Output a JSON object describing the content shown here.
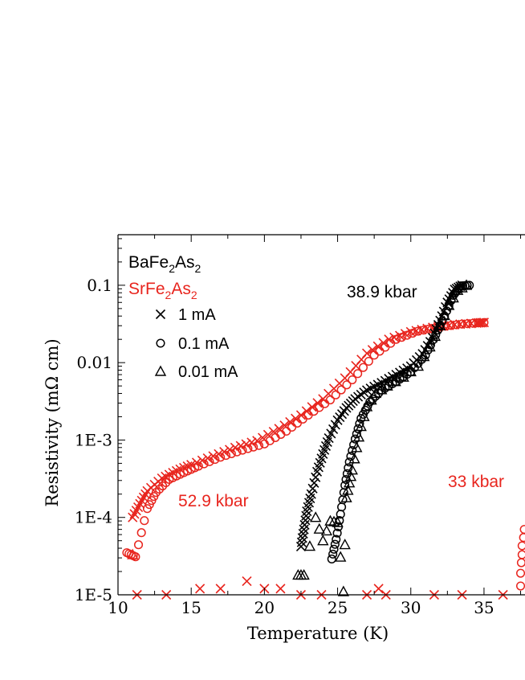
{
  "colors": {
    "black": "#000000",
    "red": "#e8251e"
  },
  "chart_data": {
    "type": "scatter",
    "xlabel": "Temperature (K)",
    "ylabel": "Resistivity (mΩ cm)",
    "xlim": [
      10,
      37.8
    ],
    "ylim": [
      1e-05,
      0.45
    ],
    "y_scale": "log",
    "x_ticks": [
      10,
      15,
      20,
      25,
      30,
      35
    ],
    "y_ticks": [
      {
        "value": 1e-05,
        "label": "1E-5"
      },
      {
        "value": 0.0001,
        "label": "1E-4"
      },
      {
        "value": 0.001,
        "label": "1E-3"
      },
      {
        "value": 0.01,
        "label": "0.01"
      },
      {
        "value": 0.1,
        "label": "0.1"
      }
    ],
    "compounds": {
      "ba": {
        "base": "BaFe",
        "sub1": "2",
        "mid": "As",
        "sub2": "2"
      },
      "sr": {
        "base": "SrFe",
        "sub1": "2",
        "mid": "As",
        "sub2": "2"
      }
    },
    "legend": [
      {
        "marker": "x",
        "label": "1 mA"
      },
      {
        "marker": "circle",
        "label": "0.1 mA"
      },
      {
        "marker": "triangle",
        "label": "0.01 mA"
      }
    ],
    "annotations": [
      {
        "text": "38.9 kbar",
        "color": "black"
      },
      {
        "text": "52.9 kbar",
        "color": "red"
      },
      {
        "text": "33 kbar",
        "color": "red"
      }
    ],
    "series": [
      {
        "compound": "SrFe2As2",
        "pressure": "52.9 kbar",
        "current": "1 mA",
        "marker": "x",
        "color": "red",
        "points": [
          [
            11.0,
            0.0001
          ],
          [
            11.5,
            0.00015
          ],
          [
            12.0,
            0.00022
          ],
          [
            13.0,
            0.00032
          ],
          [
            14.0,
            0.0004
          ],
          [
            15.0,
            0.00048
          ],
          [
            16.5,
            0.00062
          ],
          [
            18.0,
            0.0008
          ],
          [
            19.5,
            0.00098
          ],
          [
            21.0,
            0.0014
          ],
          [
            22.5,
            0.0021
          ],
          [
            24.0,
            0.0034
          ],
          [
            25.5,
            0.0063
          ],
          [
            27.0,
            0.0132
          ],
          [
            28.5,
            0.02
          ],
          [
            30.0,
            0.025
          ],
          [
            31.5,
            0.0285
          ],
          [
            33.0,
            0.031
          ],
          [
            34.5,
            0.0325
          ],
          [
            35.0,
            0.033
          ]
        ]
      },
      {
        "compound": "SrFe2As2",
        "pressure": "52.9 kbar",
        "current": "0.1 mA",
        "marker": "circle",
        "color": "red",
        "points": [
          [
            10.6,
            3.5e-05
          ],
          [
            11.2,
            3.1e-05
          ],
          [
            12.0,
            0.00013
          ],
          [
            12.6,
            0.00021
          ],
          [
            13.5,
            0.00031
          ],
          [
            14.5,
            0.00038
          ],
          [
            15.5,
            0.00046
          ],
          [
            17.0,
            0.0006
          ],
          [
            18.5,
            0.00074
          ],
          [
            20.0,
            0.00089
          ],
          [
            21.5,
            0.0013
          ],
          [
            23.0,
            0.0021
          ],
          [
            24.5,
            0.0033
          ],
          [
            26.0,
            0.006
          ],
          [
            27.5,
            0.0125
          ],
          [
            29.0,
            0.02
          ],
          [
            30.5,
            0.0255
          ],
          [
            32.0,
            0.029
          ],
          [
            33.5,
            0.0315
          ],
          [
            35.0,
            0.033
          ]
        ]
      },
      {
        "compound": "SrFe2As2",
        "pressure": "52.9 kbar",
        "current": "0.01 mA",
        "marker": "triangle",
        "color": "red",
        "points": [
          [
            11.0,
            3.3e-05
          ]
        ]
      },
      {
        "compound": "SrFe2As2",
        "pressure": "52.9 kbar",
        "current": "1 mA",
        "marker": "x",
        "color": "red",
        "note": "noise floor",
        "points": [
          [
            11.3,
            1e-05
          ],
          [
            13.3,
            1e-05
          ],
          [
            15.6,
            1.2e-05
          ],
          [
            17.0,
            1.2e-05
          ],
          [
            18.8,
            1.5e-05
          ],
          [
            20.0,
            1.2e-05
          ],
          [
            21.1,
            1.2e-05
          ],
          [
            22.5,
            1e-05
          ],
          [
            23.9,
            1e-05
          ],
          [
            27.0,
            1e-05
          ],
          [
            27.8,
            1.2e-05
          ],
          [
            28.3,
            1e-05
          ],
          [
            31.6,
            1e-05
          ],
          [
            33.5,
            1e-05
          ],
          [
            36.3,
            1e-05
          ]
        ]
      },
      {
        "compound": "SrFe2As2",
        "pressure": "33 kbar",
        "current": "0.1 mA",
        "marker": "circle",
        "color": "red",
        "points": [
          [
            37.5,
            1.3e-05
          ],
          [
            37.5,
            1.9e-05
          ],
          [
            37.55,
            2.6e-05
          ],
          [
            37.6,
            3.3e-05
          ],
          [
            37.6,
            4.3e-05
          ],
          [
            37.7,
            5.5e-05
          ],
          [
            37.75,
            7e-05
          ]
        ]
      },
      {
        "compound": "BaFe2As2",
        "pressure": "38.9 kbar",
        "current": "1 mA",
        "marker": "x",
        "color": "black",
        "points": [
          [
            22.5,
            4.2e-05
          ],
          [
            22.7,
            7e-05
          ],
          [
            22.9,
            0.00012
          ],
          [
            23.2,
            0.0002
          ],
          [
            23.6,
            0.00039
          ],
          [
            24.0,
            0.00066
          ],
          [
            24.4,
            0.00106
          ],
          [
            25.0,
            0.0018
          ],
          [
            25.6,
            0.0026
          ],
          [
            26.2,
            0.0034
          ],
          [
            27.0,
            0.0044
          ],
          [
            28.0,
            0.0055
          ],
          [
            29.0,
            0.007
          ],
          [
            30.0,
            0.009
          ],
          [
            30.8,
            0.013
          ],
          [
            31.5,
            0.021
          ],
          [
            32.0,
            0.035
          ],
          [
            32.5,
            0.06
          ],
          [
            33.0,
            0.088
          ],
          [
            33.5,
            0.1
          ]
        ]
      },
      {
        "compound": "BaFe2As2",
        "pressure": "38.9 kbar",
        "current": "0.1 mA",
        "marker": "circle",
        "color": "black",
        "points": [
          [
            24.6,
            2.9e-05
          ],
          [
            24.9,
            5.2e-05
          ],
          [
            25.2,
            0.00011
          ],
          [
            25.5,
            0.00026
          ],
          [
            25.8,
            0.00052
          ],
          [
            26.2,
            0.00103
          ],
          [
            26.6,
            0.0019
          ],
          [
            27.2,
            0.0031
          ],
          [
            28.0,
            0.0044
          ],
          [
            29.0,
            0.0057
          ],
          [
            30.0,
            0.0076
          ],
          [
            31.0,
            0.0125
          ],
          [
            31.7,
            0.023
          ],
          [
            32.3,
            0.04
          ],
          [
            32.9,
            0.074
          ],
          [
            33.4,
            0.098
          ],
          [
            34.0,
            0.1
          ]
        ]
      },
      {
        "compound": "BaFe2As2",
        "pressure": "38.9 kbar",
        "current": "0.01 mA",
        "marker": "triangle",
        "color": "black",
        "points": [
          [
            22.3,
            1.8e-05
          ],
          [
            22.7,
            1.8e-05
          ],
          [
            23.5,
            0.0001
          ],
          [
            24.0,
            5e-05
          ],
          [
            24.5,
            9e-05
          ],
          [
            25.0,
            8.6e-05
          ],
          [
            25.4,
            1.1e-05
          ],
          [
            25.6,
            0.00018
          ],
          [
            25.8,
            0.00028
          ],
          [
            26.0,
            0.00041
          ],
          [
            26.3,
            0.0008
          ],
          [
            26.6,
            0.0015
          ],
          [
            27.0,
            0.0027
          ],
          [
            27.6,
            0.004
          ],
          [
            28.4,
            0.005
          ],
          [
            29.5,
            0.0065
          ],
          [
            30.5,
            0.009
          ],
          [
            31.3,
            0.016
          ],
          [
            32.0,
            0.03
          ],
          [
            32.6,
            0.055
          ],
          [
            33.2,
            0.086
          ],
          [
            33.8,
            0.1
          ]
        ]
      }
    ]
  }
}
